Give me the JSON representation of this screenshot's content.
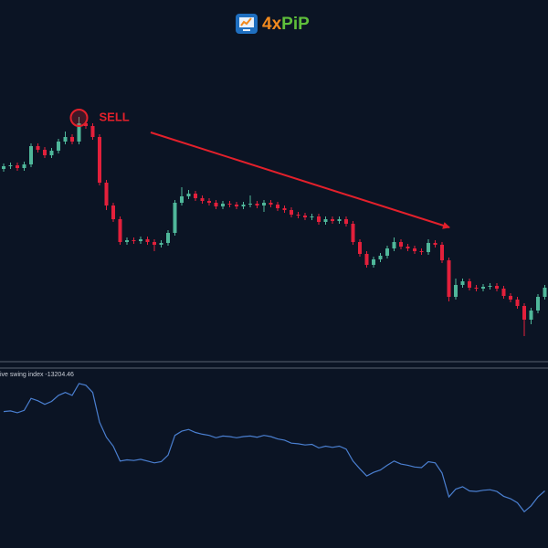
{
  "logo_parts": [
    "4x",
    "PiP"
  ],
  "chart_data": [
    {
      "type": "candlestick",
      "annotation": "SELL",
      "annotation_index": 11,
      "up_color": "#4fb79a",
      "down_color": "#e3203b",
      "ylim": [
        0,
        400
      ],
      "open": [
        215,
        218,
        219,
        216,
        220,
        240,
        236,
        230,
        235,
        245,
        250,
        245,
        265,
        262,
        250,
        200,
        175,
        160,
        135,
        137,
        136,
        138,
        135,
        132,
        134,
        145,
        178,
        185,
        188,
        183,
        180,
        178,
        174,
        177,
        176,
        174,
        176,
        177,
        175,
        178,
        176,
        172,
        170,
        165,
        164,
        162,
        163,
        157,
        160,
        158,
        160,
        155,
        135,
        122,
        110,
        116,
        120,
        128,
        135,
        130,
        128,
        125,
        124,
        134,
        132,
        115,
        75,
        88,
        92,
        85,
        84,
        86,
        87,
        84,
        76,
        72,
        65,
        50,
        60,
        75
      ],
      "high": [
        221,
        222,
        222,
        223,
        243,
        243,
        239,
        238,
        248,
        256,
        253,
        272,
        268,
        265,
        253,
        203,
        178,
        163,
        140,
        140,
        141,
        141,
        138,
        137,
        148,
        181,
        195,
        192,
        191,
        186,
        183,
        181,
        180,
        180,
        179,
        179,
        186,
        180,
        181,
        181,
        179,
        175,
        173,
        168,
        167,
        166,
        166,
        163,
        163,
        163,
        163,
        158,
        138,
        125,
        119,
        123,
        131,
        140,
        138,
        133,
        131,
        128,
        138,
        137,
        135,
        118,
        95,
        95,
        95,
        88,
        89,
        90,
        90,
        87,
        79,
        75,
        68,
        63,
        78,
        88
      ],
      "low": [
        212,
        215,
        213,
        213,
        217,
        233,
        227,
        227,
        232,
        242,
        242,
        242,
        259,
        247,
        197,
        170,
        157,
        132,
        132,
        133,
        133,
        132,
        125,
        129,
        131,
        142,
        175,
        182,
        180,
        177,
        175,
        171,
        171,
        173,
        171,
        171,
        173,
        172,
        168,
        173,
        169,
        167,
        162,
        161,
        159,
        159,
        154,
        154,
        155,
        155,
        152,
        132,
        119,
        107,
        107,
        113,
        117,
        125,
        127,
        125,
        122,
        121,
        121,
        129,
        112,
        70,
        72,
        85,
        82,
        81,
        81,
        83,
        81,
        73,
        69,
        62,
        32,
        45,
        57,
        72
      ],
      "close": [
        218,
        219,
        216,
        220,
        240,
        236,
        230,
        235,
        245,
        250,
        245,
        265,
        262,
        250,
        200,
        175,
        160,
        135,
        137,
        136,
        138,
        135,
        132,
        134,
        145,
        178,
        185,
        188,
        183,
        180,
        178,
        174,
        177,
        176,
        174,
        176,
        177,
        175,
        178,
        176,
        172,
        170,
        165,
        164,
        162,
        163,
        157,
        160,
        158,
        160,
        155,
        135,
        122,
        110,
        116,
        120,
        128,
        135,
        130,
        128,
        125,
        124,
        134,
        132,
        115,
        75,
        88,
        92,
        85,
        84,
        86,
        87,
        84,
        76,
        72,
        65,
        50,
        60,
        75,
        85
      ]
    },
    {
      "type": "line",
      "label": "ive swing index -13204.46",
      "color": "#4a7fd0",
      "ylim": [
        -23000,
        9000
      ],
      "values": [
        1581,
        1692,
        1358,
        1803,
        4027,
        3582,
        2915,
        3471,
        4583,
        5139,
        4583,
        6807,
        6473,
        5139,
        -421,
        -3201,
        -4869,
        -7649,
        -7427,
        -7538,
        -7316,
        -7649,
        -7983,
        -7760,
        -6537,
        -2867,
        -2089,
        -1755,
        -2311,
        -2645,
        -2867,
        -3312,
        -2978,
        -3090,
        -3312,
        -3090,
        -2978,
        -3201,
        -2867,
        -3090,
        -3535,
        -3757,
        -4313,
        -4424,
        -4647,
        -4535,
        -5203,
        -4869,
        -5091,
        -4869,
        -5425,
        -7649,
        -9095,
        -10429,
        -9762,
        -9317,
        -8427,
        -7649,
        -8205,
        -8427,
        -8761,
        -8872,
        -7760,
        -7983,
        -9873,
        -14321,
        -12875,
        -12431,
        -13209,
        -13320,
        -13098,
        -12987,
        -13320,
        -14210,
        -14655,
        -15433,
        -17101,
        -15989,
        -14321,
        -13204.46
      ]
    }
  ]
}
